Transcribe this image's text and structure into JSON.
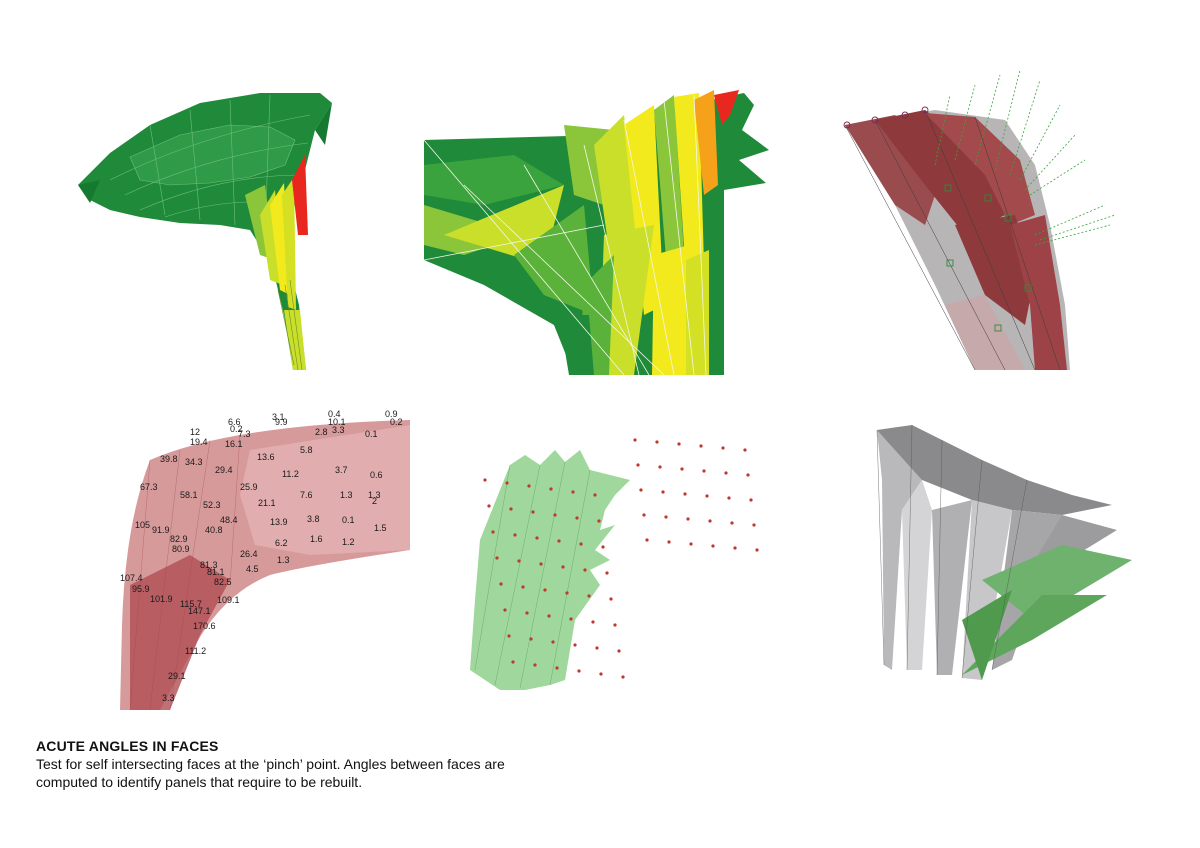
{
  "caption": {
    "title": "ACUTE ANGLES IN FACES",
    "body": "Test for self intersecting faces at the ‘pinch’ point. Angles between faces are computed to identify panels that require to be rebuilt."
  },
  "panels": [
    {
      "id": "green-canopy-overview"
    },
    {
      "id": "green-canopy-detail"
    },
    {
      "id": "red-faces-with-normals"
    },
    {
      "id": "angle-value-map"
    },
    {
      "id": "green-face-markers"
    },
    {
      "id": "gray-rebuilt-panels"
    }
  ],
  "angle_labels": [
    "12",
    "19.4",
    "16.1",
    "7.3",
    "6.6",
    "0.2",
    "3.1",
    "9.9",
    "0.4",
    "10.1",
    "0.9",
    "0.2",
    "39.8",
    "34.3",
    "13.6",
    "5.8",
    "2.8",
    "3.3",
    "0.1",
    "67.3",
    "29.4",
    "11.2",
    "3.7",
    "0.6",
    "58.1",
    "25.9",
    "1.3",
    "1.3",
    "52.3",
    "21.1",
    "7.6",
    "2",
    "105",
    "48.4",
    "13.9",
    "3.8",
    "0.1",
    "1.5",
    "91.9",
    "82.9",
    "40.8",
    "6.2",
    "1.6",
    "1.2",
    "80.9",
    "26.4",
    "1.3",
    "81.3",
    "4.5",
    "107.4",
    "81.1",
    "82.5",
    "95.9",
    "101.9",
    "109.1",
    "115.7",
    "147.1",
    "170.6",
    "111.2",
    "29.1",
    "3.3"
  ],
  "colors": {
    "green_dark": "#1f8a3a",
    "green_mid": "#5bb23a",
    "yellow_green": "#c9df2a",
    "yellow": "#f2ea1c",
    "orange": "#f5a21a",
    "red": "#e8281e",
    "maroon": "#8e3a3d",
    "pink": "#c9787a",
    "pale_green": "#9fd79c",
    "gray": "#8a8a8c"
  }
}
